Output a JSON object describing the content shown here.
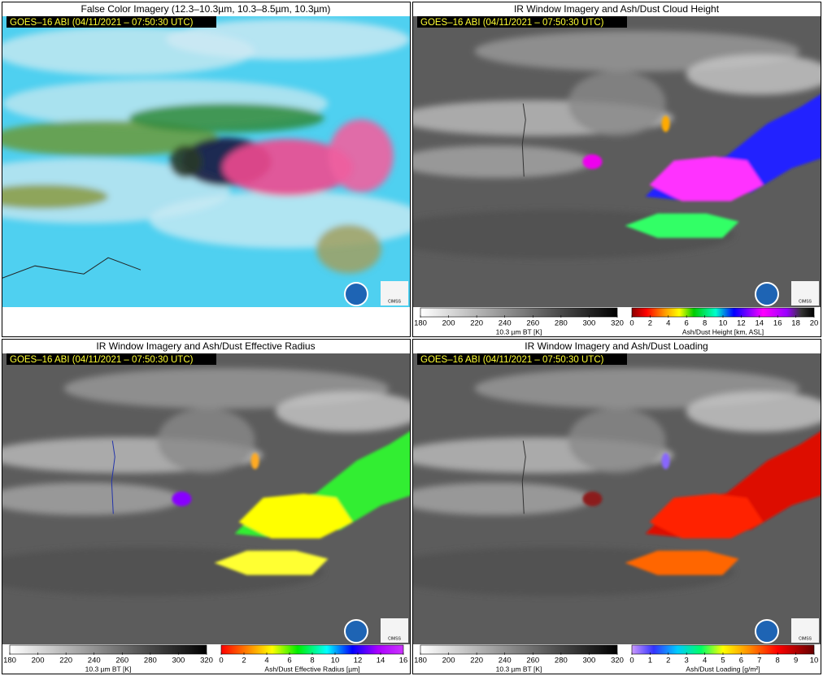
{
  "panels": [
    {
      "title": "False Color Imagery (12.3–10.3µm, 10.3–8.5µm, 10.3µm)",
      "timestamp": "GOES–16 ABI (04/11/2021 – 07:50:30 UTC)",
      "logo": "CIMSS",
      "colorbars": []
    },
    {
      "title": "IR Window Imagery and Ash/Dust Cloud Height",
      "timestamp": "GOES–16 ABI (04/11/2021 – 07:50:30 UTC)",
      "logo": "CIMSS",
      "colorbars": [
        {
          "label": "10.3 µm BT [K]",
          "ticks": [
            180,
            200,
            220,
            240,
            260,
            280,
            300,
            320
          ]
        },
        {
          "label": "Ash/Dust Height [km, ASL]",
          "ticks": [
            0,
            2,
            4,
            6,
            8,
            10,
            12,
            14,
            16,
            18,
            20
          ]
        }
      ]
    },
    {
      "title": "IR Window Imagery and Ash/Dust Effective Radius",
      "timestamp": "GOES–16 ABI (04/11/2021 – 07:50:30 UTC)",
      "logo": "CIMSS",
      "colorbars": [
        {
          "label": "10.3 µm BT [K]",
          "ticks": [
            180,
            200,
            220,
            240,
            260,
            280,
            300,
            320
          ]
        },
        {
          "label": "Ash/Dust Effective Radius [µm]",
          "ticks": [
            0,
            2,
            4,
            6,
            8,
            10,
            12,
            14,
            16
          ]
        }
      ]
    },
    {
      "title": "IR Window Imagery and Ash/Dust Loading",
      "timestamp": "GOES–16 ABI (04/11/2021 – 07:50:30 UTC)",
      "logo": "CIMSS",
      "colorbars": [
        {
          "label": "10.3 µm BT [K]",
          "ticks": [
            180,
            200,
            220,
            240,
            260,
            280,
            300,
            320
          ]
        },
        {
          "label": "Ash/Dust Loading [g/m²]",
          "ticks": [
            0,
            1,
            2,
            3,
            4,
            5,
            6,
            7,
            8,
            9,
            10
          ]
        }
      ]
    }
  ]
}
